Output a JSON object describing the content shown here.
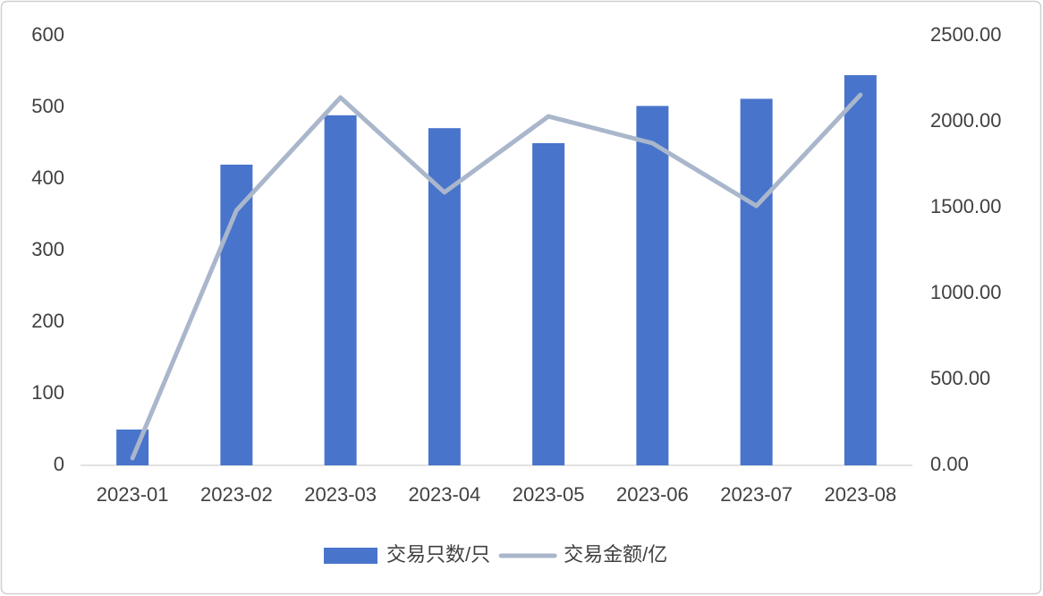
{
  "chart_data": {
    "type": "bar",
    "categories": [
      "2023-01",
      "2023-02",
      "2023-03",
      "2023-04",
      "2023-05",
      "2023-06",
      "2023-07",
      "2023-08"
    ],
    "series": [
      {
        "name": "交易只数/只",
        "type": "bar",
        "color": "#4874cb",
        "values": [
          50,
          420,
          489,
          471,
          450,
          502,
          512,
          545
        ]
      },
      {
        "name": "交易金额/亿",
        "type": "line",
        "axis": "y2",
        "color": "#a9b6cb",
        "values": [
          42,
          1484,
          2141,
          1589,
          2031,
          1875,
          1510,
          2156
        ]
      }
    ],
    "ylim": [
      0,
      600
    ],
    "yticks": [
      0,
      100,
      200,
      300,
      400,
      500,
      600
    ],
    "y2lim": [
      0,
      2500
    ],
    "y2ticks": [
      {
        "value": 0,
        "label": "0.00"
      },
      {
        "value": 500,
        "label": "500.00"
      },
      {
        "value": 1000,
        "label": "1000.00"
      },
      {
        "value": 1500,
        "label": "1500.00"
      },
      {
        "value": 2000,
        "label": "2000.00"
      },
      {
        "value": 2500,
        "label": "2500.00"
      }
    ],
    "grid": false,
    "legend": "bottom"
  }
}
